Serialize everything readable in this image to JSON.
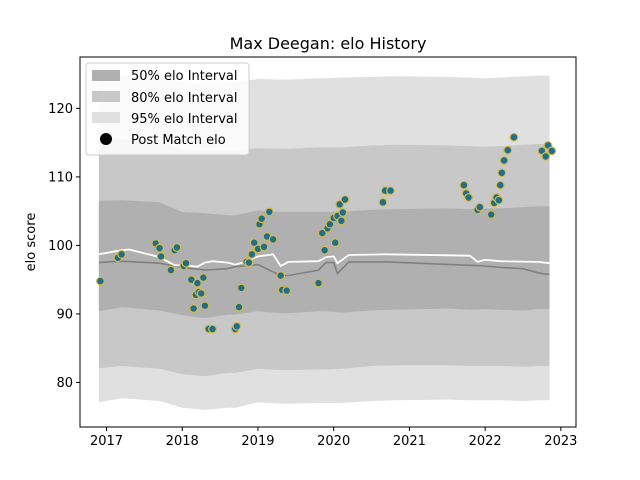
{
  "chart_data": {
    "type": "line",
    "title": "Max Deegan: elo History",
    "xlabel": "",
    "ylabel": "elo score",
    "xlim": [
      2016.65,
      2023.2
    ],
    "ylim": [
      73.5,
      127.5
    ],
    "x_ticks": [
      "2017",
      "2018",
      "2019",
      "2020",
      "2021",
      "2022",
      "2023"
    ],
    "y_ticks": [
      "80",
      "90",
      "100",
      "110",
      "120"
    ],
    "grid": false,
    "legend_position": "top-left",
    "legend": [
      {
        "label": "50% elo Interval",
        "color": "#b0b0b0"
      },
      {
        "label": "80% elo Interval",
        "color": "#c8c8c8"
      },
      {
        "label": "95% elo Interval",
        "color": "#e0e0e0"
      },
      {
        "label": "Post Match elo",
        "color": "#000000"
      }
    ],
    "band_x": [
      2016.9,
      2017.2,
      2017.7,
      2018.0,
      2018.3,
      2018.6,
      2018.7,
      2019.0,
      2019.3,
      2019.4,
      2019.8,
      2019.9,
      2020.1,
      2020.5,
      2020.8,
      2021.5,
      2021.8,
      2022.0,
      2022.2,
      2022.5,
      2022.7,
      2022.8,
      2022.85
    ],
    "band50_upper": [
      106.5,
      106.6,
      106.3,
      104.9,
      104.7,
      104.4,
      104.4,
      105.1,
      104.9,
      104.9,
      104.9,
      104.9,
      104.9,
      105.2,
      105.3,
      105.4,
      105.3,
      105.4,
      105.4,
      105.6,
      105.7,
      105.7,
      105.7
    ],
    "band50_lower": [
      90.4,
      91.0,
      90.5,
      89.8,
      89.4,
      89.9,
      89.9,
      90.4,
      90.1,
      90.1,
      90.4,
      90.4,
      90.2,
      90.5,
      90.6,
      90.8,
      90.6,
      90.7,
      90.6,
      90.5,
      90.7,
      90.7,
      90.7
    ],
    "band80_upper": [
      115.4,
      115.5,
      115.1,
      114.0,
      113.8,
      113.9,
      113.9,
      114.2,
      114.1,
      114.1,
      114.3,
      114.3,
      114.3,
      114.6,
      114.7,
      114.6,
      114.5,
      114.4,
      114.5,
      114.7,
      114.8,
      114.8,
      114.8
    ],
    "band80_lower": [
      82.1,
      82.4,
      82.0,
      81.2,
      80.9,
      81.4,
      81.4,
      82.0,
      81.8,
      81.8,
      81.9,
      81.9,
      82.0,
      82.4,
      82.5,
      82.5,
      82.4,
      82.4,
      82.4,
      82.3,
      82.4,
      82.4,
      82.4
    ],
    "band95_upper": [
      125.0,
      124.8,
      124.6,
      123.8,
      123.5,
      123.8,
      123.8,
      124.3,
      124.2,
      124.2,
      124.4,
      124.4,
      124.5,
      124.6,
      124.7,
      124.6,
      124.5,
      124.4,
      124.5,
      124.7,
      124.8,
      124.8,
      124.8
    ],
    "band95_lower": [
      77.1,
      77.7,
      77.3,
      76.3,
      76.0,
      76.3,
      76.3,
      77.1,
      76.9,
      76.9,
      77.0,
      77.0,
      77.0,
      77.3,
      77.4,
      77.5,
      77.4,
      77.4,
      77.4,
      77.3,
      77.4,
      77.4,
      77.4
    ],
    "mean_line": {
      "x": [
        2016.9,
        2017.2,
        2017.3,
        2017.7,
        2017.9,
        2018.0,
        2018.2,
        2018.3,
        2018.4,
        2018.6,
        2018.7,
        2018.8,
        2019.0,
        2019.2,
        2019.3,
        2019.4,
        2019.8,
        2019.9,
        2020.0,
        2020.05,
        2020.2,
        2020.7,
        2021.8,
        2021.9,
        2022.0,
        2022.2,
        2022.7,
        2022.85
      ],
      "values": [
        98.7,
        99.3,
        99.4,
        98.3,
        97.1,
        97.1,
        96.9,
        97.5,
        97.7,
        97.5,
        97.2,
        97.5,
        98.4,
        98.7,
        97.0,
        97.6,
        97.7,
        98.3,
        98.4,
        97.4,
        98.6,
        98.7,
        98.5,
        97.6,
        97.9,
        97.7,
        97.6,
        97.4
      ]
    },
    "median_line": {
      "x": [
        2016.9,
        2017.2,
        2017.7,
        2018.0,
        2018.3,
        2018.6,
        2018.7,
        2019.0,
        2019.3,
        2019.4,
        2019.8,
        2019.9,
        2020.0,
        2020.05,
        2020.2,
        2020.7,
        2021.8,
        2022.0,
        2022.2,
        2022.5,
        2022.7,
        2022.8,
        2022.85
      ],
      "values": [
        97.5,
        97.7,
        97.4,
        96.8,
        96.4,
        96.6,
        96.9,
        97.2,
        95.6,
        95.6,
        96.4,
        97.5,
        97.5,
        95.9,
        97.6,
        97.6,
        97.1,
        97.0,
        96.8,
        96.6,
        96.0,
        95.8,
        95.8
      ]
    },
    "series": [
      {
        "name": "Post Match elo",
        "x": [
          2016.92,
          2017.15,
          2017.2,
          2017.65,
          2017.7,
          2017.72,
          2017.85,
          2017.9,
          2017.93,
          2018.02,
          2018.05,
          2018.12,
          2018.15,
          2018.18,
          2018.2,
          2018.22,
          2018.25,
          2018.28,
          2018.3,
          2018.35,
          2018.4,
          2018.7,
          2018.72,
          2018.75,
          2018.78,
          2018.85,
          2018.88,
          2018.92,
          2018.95,
          2019.0,
          2019.02,
          2019.05,
          2019.08,
          2019.12,
          2019.15,
          2019.2,
          2019.3,
          2019.32,
          2019.38,
          2019.8,
          2019.85,
          2019.88,
          2019.92,
          2019.95,
          2020.0,
          2020.02,
          2020.05,
          2020.08,
          2020.1,
          2020.12,
          2020.15,
          2020.65,
          2020.68,
          2020.75,
          2021.72,
          2021.75,
          2021.78,
          2021.9,
          2021.93,
          2022.08,
          2022.12,
          2022.15,
          2022.18,
          2022.2,
          2022.22,
          2022.25,
          2022.3,
          2022.38,
          2022.75,
          2022.8,
          2022.83,
          2022.88
        ],
        "values": [
          94.8,
          98.2,
          98.7,
          100.3,
          99.6,
          98.4,
          96.4,
          99.3,
          99.7,
          97.0,
          97.4,
          95.0,
          90.8,
          92.8,
          94.5,
          93.2,
          93.0,
          95.3,
          91.2,
          87.8,
          87.8,
          87.8,
          88.2,
          91.0,
          93.8,
          97.6,
          97.5,
          98.7,
          100.4,
          99.5,
          103.1,
          103.9,
          99.8,
          101.3,
          104.9,
          100.9,
          95.6,
          93.5,
          93.4,
          94.5,
          101.8,
          99.3,
          102.5,
          103.1,
          104.0,
          100.4,
          104.3,
          106.0,
          103.6,
          104.8,
          106.7,
          106.3,
          108.0,
          108.0,
          108.8,
          107.6,
          107.0,
          105.2,
          105.6,
          104.5,
          106.2,
          107.0,
          106.6,
          108.8,
          110.6,
          112.4,
          113.9,
          115.8,
          113.8,
          113.0,
          114.6,
          113.8
        ],
        "color": "#1f6f8b",
        "edge": "#d4b848"
      }
    ]
  }
}
